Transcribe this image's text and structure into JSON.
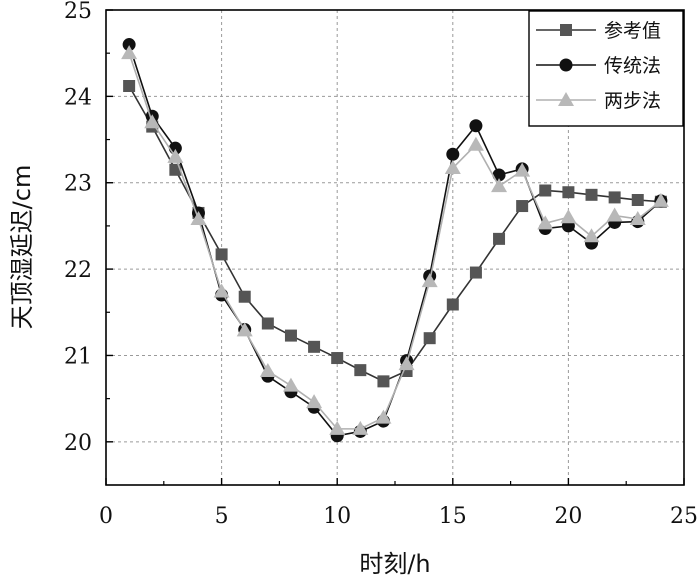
{
  "chart_data": {
    "type": "line",
    "title": "",
    "xlabel": "时刻/h",
    "ylabel": "天顶湿延迟/cm",
    "xlim": [
      0,
      25
    ],
    "ylim": [
      19.5,
      25
    ],
    "xticks": [
      0,
      5,
      10,
      15,
      20,
      25
    ],
    "yticks": [
      20,
      21,
      22,
      23,
      24,
      25
    ],
    "grid": true,
    "legend_position": "top-right",
    "x": [
      1,
      2,
      3,
      4,
      5,
      6,
      7,
      8,
      9,
      10,
      11,
      12,
      13,
      14,
      15,
      16,
      17,
      18,
      19,
      20,
      21,
      22,
      23,
      24
    ],
    "series": [
      {
        "name": "参考值",
        "marker": "square",
        "line_color": "#333333",
        "marker_color": "#555555",
        "values": [
          24.12,
          23.65,
          23.15,
          22.65,
          22.17,
          21.68,
          21.37,
          21.23,
          21.1,
          20.97,
          20.83,
          20.7,
          20.82,
          21.2,
          21.59,
          21.96,
          22.35,
          22.73,
          22.91,
          22.89,
          22.86,
          22.83,
          22.8,
          22.78
        ]
      },
      {
        "name": "传统法",
        "marker": "circle",
        "line_color": "#111111",
        "marker_color": "#111111",
        "values": [
          24.6,
          23.77,
          23.4,
          22.65,
          21.7,
          21.3,
          20.76,
          20.58,
          20.4,
          20.07,
          20.12,
          20.24,
          20.94,
          21.92,
          23.33,
          23.66,
          23.09,
          23.16,
          22.47,
          22.5,
          22.3,
          22.54,
          22.55,
          22.79
        ]
      },
      {
        "name": "两步法",
        "marker": "triangle",
        "line_color": "#b0b0b0",
        "marker_color": "#b8b8b8",
        "values": [
          24.5,
          23.7,
          23.3,
          22.58,
          21.74,
          21.29,
          20.82,
          20.65,
          20.46,
          20.15,
          20.15,
          20.28,
          20.9,
          21.86,
          23.17,
          23.44,
          22.96,
          23.14,
          22.53,
          22.6,
          22.38,
          22.62,
          22.58,
          22.79
        ]
      }
    ]
  }
}
